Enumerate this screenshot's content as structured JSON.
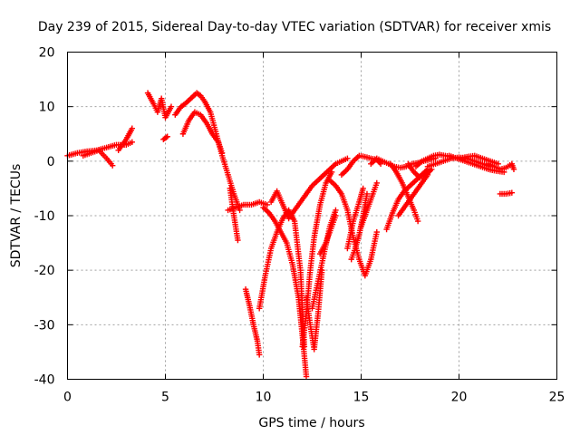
{
  "chart_data": {
    "type": "scatter",
    "title": "Day 239 of 2015, Sidereal Day-to-day VTEC variation (SDTVAR) for receiver xmis",
    "xlabel": "GPS time / hours",
    "ylabel": "SDTVAR / TECUs",
    "xlim": [
      0,
      25
    ],
    "ylim": [
      -40,
      20
    ],
    "xticks": [
      0,
      5,
      10,
      15,
      20,
      25
    ],
    "yticks": [
      -40,
      -30,
      -20,
      -10,
      0,
      10,
      20
    ],
    "grid": true,
    "marker": "plus",
    "colors": {
      "series": "#ff0000",
      "grid": "#a0a0a0",
      "axes": "#000000"
    },
    "series": [
      {
        "name": "SDTVAR",
        "segments": [
          {
            "x": [
              0.0,
              0.5,
              1.0,
              1.5,
              2.0,
              2.5,
              3.0,
              3.3
            ],
            "y": [
              1.0,
              1.5,
              1.8,
              2.0,
              2.5,
              3.0,
              3.0,
              3.5
            ]
          },
          {
            "x": [
              0.8,
              1.2,
              1.6,
              2.0,
              2.3
            ],
            "y": [
              1.0,
              1.5,
              2.0,
              0.5,
              -0.8
            ]
          },
          {
            "x": [
              2.6,
              3.0,
              3.3
            ],
            "y": [
              2.0,
              4.0,
              6.0
            ]
          },
          {
            "x": [
              4.1,
              4.4,
              4.6,
              4.8,
              5.0,
              5.3
            ],
            "y": [
              12.5,
              10.5,
              9.0,
              11.5,
              8.0,
              10.0
            ]
          },
          {
            "x": [
              4.9,
              5.1
            ],
            "y": [
              4.0,
              4.5
            ]
          },
          {
            "x": [
              5.5,
              5.8,
              6.0,
              6.3,
              6.6,
              6.8,
              7.0,
              7.3,
              7.6,
              7.9,
              8.2,
              8.5,
              8.8
            ],
            "y": [
              8.5,
              10.0,
              10.5,
              11.5,
              12.5,
              12.0,
              11.0,
              9.0,
              5.0,
              1.0,
              -2.5,
              -6.0,
              -9.0
            ]
          },
          {
            "x": [
              5.9,
              6.2,
              6.5,
              6.8,
              7.1,
              7.4,
              7.7,
              7.9
            ],
            "y": [
              5.0,
              7.5,
              9.0,
              8.5,
              7.0,
              5.0,
              3.5,
              1.5
            ]
          },
          {
            "x": [
              8.3,
              8.5,
              8.7
            ],
            "y": [
              -5.0,
              -10.0,
              -14.5
            ]
          },
          {
            "x": [
              8.2,
              8.6,
              9.0,
              9.4,
              9.8,
              10.2
            ],
            "y": [
              -9.0,
              -8.5,
              -8.0,
              -8.0,
              -7.5,
              -8.0
            ]
          },
          {
            "x": [
              9.1,
              9.3,
              9.5,
              9.7,
              9.8
            ],
            "y": [
              -23.5,
              -26.5,
              -30.0,
              -33.0,
              -35.5
            ]
          },
          {
            "x": [
              9.8,
              10.1,
              10.4,
              10.7,
              11.0,
              11.3,
              11.6,
              11.9,
              12.1
            ],
            "y": [
              -27.0,
              -21.0,
              -16.0,
              -13.0,
              -10.5,
              -9.0,
              -11.0,
              -20.0,
              -34.0
            ]
          },
          {
            "x": [
              10.0,
              10.3,
              10.6,
              10.9,
              11.2,
              11.5,
              11.8,
              12.0,
              12.2
            ],
            "y": [
              -8.5,
              -9.5,
              -11.0,
              -13.0,
              -15.0,
              -19.0,
              -25.0,
              -32.0,
              -39.5
            ]
          },
          {
            "x": [
              10.4,
              10.7,
              11.0,
              11.3,
              11.6,
              11.9,
              12.2,
              12.5,
              12.8,
              13.1,
              13.4,
              13.7,
              14.0,
              14.3
            ],
            "y": [
              -7.5,
              -5.5,
              -8.0,
              -10.5,
              -9.0,
              -7.5,
              -6.0,
              -4.5,
              -3.5,
              -2.5,
              -1.5,
              -0.5,
              0.0,
              0.5
            ]
          },
          {
            "x": [
              12.2,
              12.4,
              12.6,
              12.8,
              13.0
            ],
            "y": [
              -25.0,
              -30.0,
              -34.5,
              -28.0,
              -20.0
            ]
          },
          {
            "x": [
              12.0,
              12.2,
              12.4,
              12.6,
              12.9,
              13.2,
              13.5
            ],
            "y": [
              -34.0,
              -28.0,
              -20.0,
              -14.0,
              -8.0,
              -4.0,
              -2.0
            ]
          },
          {
            "x": [
              12.5,
              12.8,
              13.1,
              13.4,
              13.7
            ],
            "y": [
              -27.0,
              -22.0,
              -17.0,
              -12.0,
              -9.0
            ]
          },
          {
            "x": [
              12.9,
              13.2,
              13.5,
              13.7
            ],
            "y": [
              -17.0,
              -15.0,
              -12.0,
              -10.0
            ]
          },
          {
            "x": [
              13.4,
              13.7,
              14.0,
              14.3,
              14.6,
              14.9,
              15.2,
              15.5,
              15.8
            ],
            "y": [
              -3.5,
              -4.5,
              -6.0,
              -9.0,
              -14.0,
              -18.0,
              -21.0,
              -18.0,
              -13.0
            ]
          },
          {
            "x": [
              14.0,
              14.3,
              14.6,
              14.9,
              15.2,
              15.5,
              15.8,
              16.0
            ],
            "y": [
              -2.5,
              -1.5,
              0.0,
              1.0,
              0.8,
              0.5,
              0.3,
              -0.5
            ]
          },
          {
            "x": [
              14.3,
              14.6,
              14.9,
              15.1
            ],
            "y": [
              -16.0,
              -11.0,
              -7.5,
              -5.0
            ]
          },
          {
            "x": [
              14.5,
              14.7,
              14.9,
              15.1,
              15.3
            ],
            "y": [
              -18.0,
              -16.0,
              -13.5,
              -10.0,
              -6.0
            ]
          },
          {
            "x": [
              15.0,
              15.3,
              15.6,
              15.8
            ],
            "y": [
              -12.0,
              -9.0,
              -6.0,
              -4.0
            ]
          },
          {
            "x": [
              15.5,
              15.8,
              16.1,
              16.4,
              16.7,
              17.0,
              17.3,
              17.6,
              17.9,
              18.2,
              18.5,
              18.8
            ],
            "y": [
              -0.5,
              0.5,
              0.0,
              -0.5,
              -1.0,
              -1.2,
              -1.0,
              -0.5,
              -0.3,
              0.0,
              0.3,
              0.5
            ]
          },
          {
            "x": [
              16.3,
              16.6,
              16.9,
              17.2,
              17.5,
              17.8,
              18.1,
              18.4
            ],
            "y": [
              -12.5,
              -9.5,
              -7.0,
              -5.5,
              -4.5,
              -3.5,
              -2.5,
              -1.5
            ]
          },
          {
            "x": [
              16.5,
              16.8,
              17.1,
              17.4,
              17.7,
              17.9
            ],
            "y": [
              -0.5,
              -2.0,
              -4.0,
              -6.5,
              -9.0,
              -11.0
            ]
          },
          {
            "x": [
              16.9,
              17.2,
              17.5,
              17.8,
              18.1,
              18.4
            ],
            "y": [
              -10.0,
              -8.5,
              -7.0,
              -5.5,
              -4.0,
              -2.5
            ]
          },
          {
            "x": [
              17.4,
              17.7,
              18.0,
              18.3,
              18.6
            ],
            "y": [
              -0.5,
              -2.0,
              -3.0,
              -2.5,
              -1.5
            ]
          },
          {
            "x": [
              17.8,
              18.1,
              18.4,
              18.7,
              19.0,
              19.3,
              19.6,
              19.9,
              20.2
            ],
            "y": [
              -1.0,
              0.0,
              0.5,
              1.0,
              1.2,
              1.0,
              0.8,
              0.5,
              0.3
            ]
          },
          {
            "x": [
              18.4,
              18.8,
              19.2,
              19.6,
              20.0,
              20.4,
              20.8,
              21.2,
              21.6
            ],
            "y": [
              -1.0,
              -0.5,
              0.0,
              0.5,
              0.7,
              0.5,
              0.0,
              -0.5,
              -1.0
            ]
          },
          {
            "x": [
              19.5,
              19.9,
              20.3,
              20.7,
              21.1,
              21.5,
              21.9,
              22.3
            ],
            "y": [
              1.0,
              0.5,
              0.0,
              -0.5,
              -1.0,
              -1.5,
              -1.8,
              -2.0
            ]
          },
          {
            "x": [
              20.0,
              20.4,
              20.8,
              21.2,
              21.6,
              22.0
            ],
            "y": [
              0.5,
              0.8,
              1.0,
              0.5,
              0.0,
              -0.5
            ]
          },
          {
            "x": [
              21.5,
              21.8,
              22.1,
              22.4,
              22.7,
              22.8
            ],
            "y": [
              -0.5,
              -1.0,
              -1.5,
              -1.2,
              -0.5,
              -1.5
            ]
          },
          {
            "x": [
              22.1,
              22.4,
              22.7
            ],
            "y": [
              -6.0,
              -6.0,
              -5.8
            ]
          }
        ]
      }
    ]
  }
}
